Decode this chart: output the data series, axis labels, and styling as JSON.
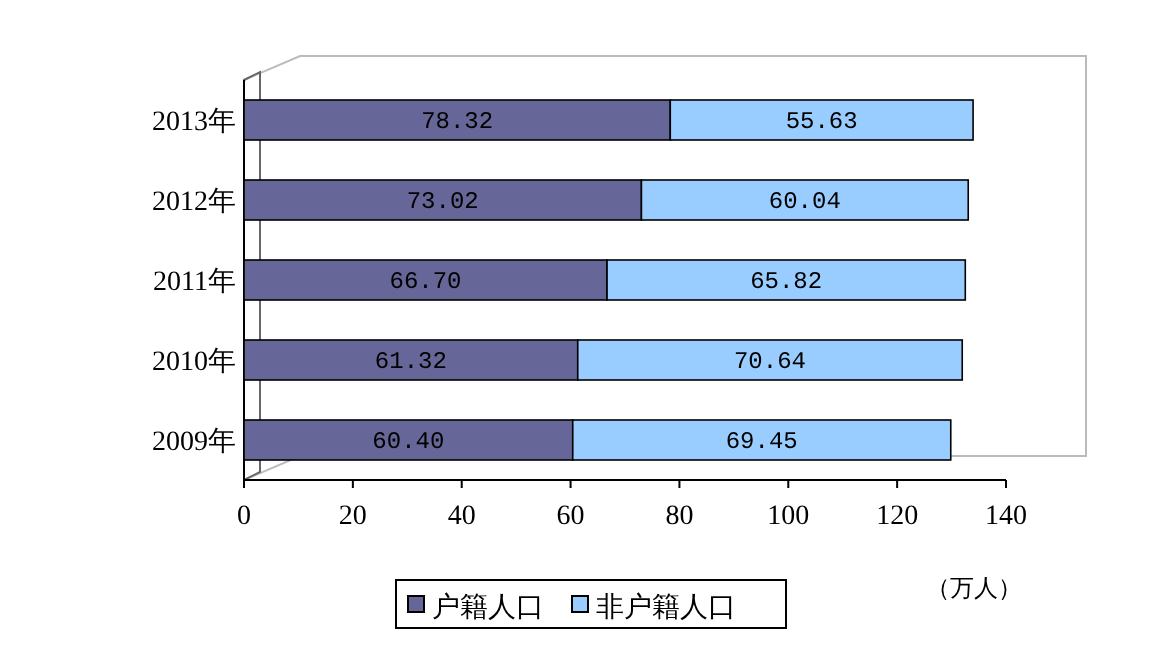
{
  "chart_data": {
    "type": "bar",
    "orientation": "horizontal",
    "stacked": true,
    "categories": [
      "2013年",
      "2012年",
      "2011年",
      "2010年",
      "2009年"
    ],
    "series": [
      {
        "name": "户籍人口",
        "color": "#666699",
        "values": [
          78.32,
          73.02,
          66.7,
          61.32,
          60.4
        ],
        "value_labels": [
          "78.32",
          "73.02",
          "66.70",
          "61.32",
          "60.40"
        ]
      },
      {
        "name": "非户籍人口",
        "color": "#99ccff",
        "values": [
          55.63,
          60.04,
          65.82,
          70.64,
          69.45
        ],
        "value_labels": [
          "55.63",
          "60.04",
          "65.82",
          "70.64",
          "69.45"
        ]
      }
    ],
    "xlim": [
      0,
      140
    ],
    "xticks": [
      0,
      20,
      40,
      60,
      80,
      100,
      120,
      140
    ],
    "xlabel": "（万人）",
    "grid": false,
    "legend": "bottom"
  }
}
